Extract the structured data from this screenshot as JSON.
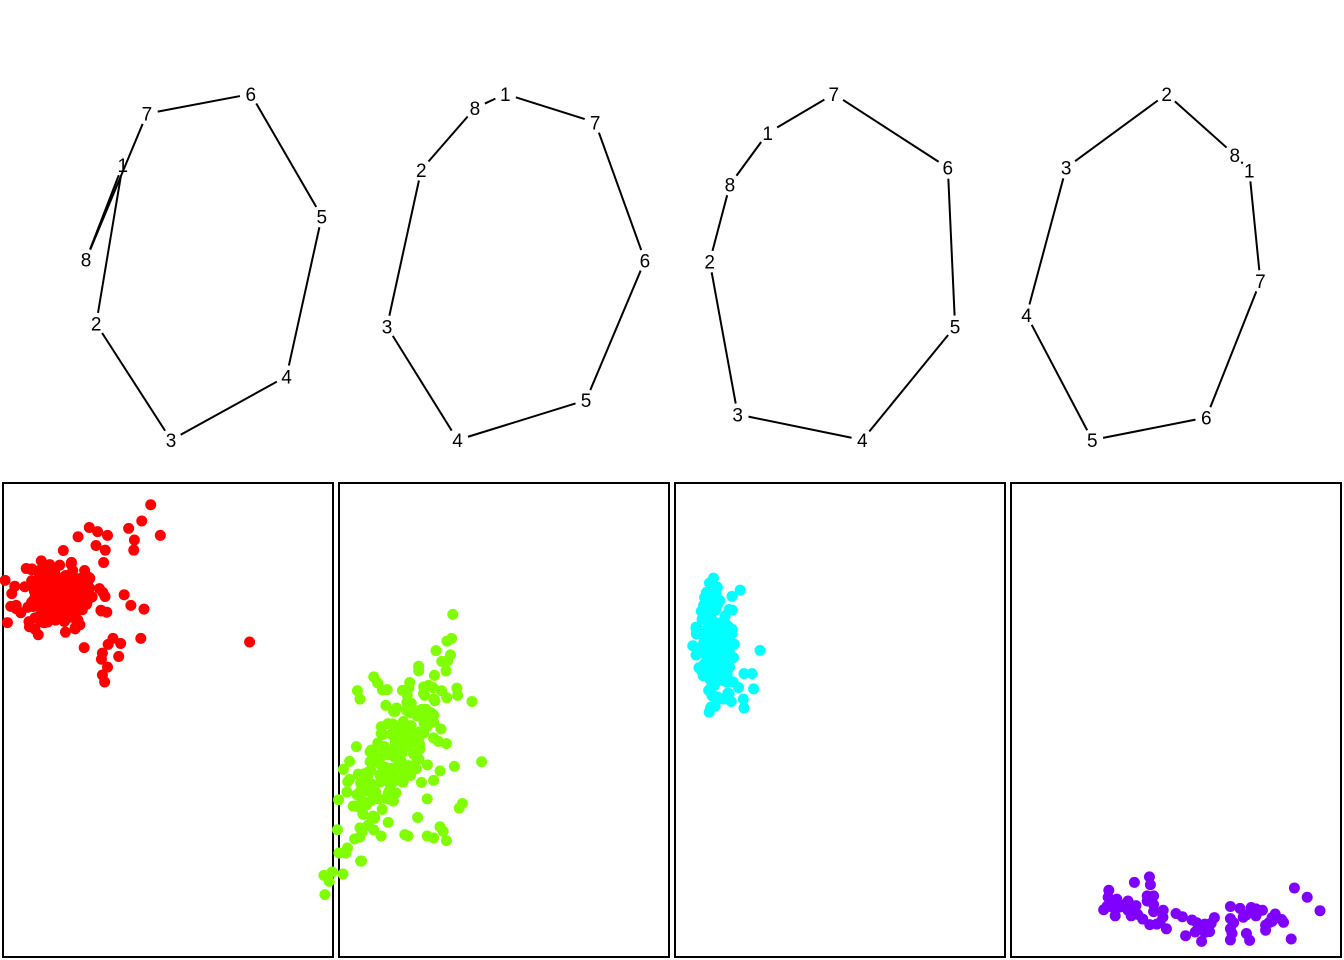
{
  "chart_data": [
    {
      "type": "network",
      "color": "#000000",
      "vertices": [
        {
          "label": "1",
          "x": 0.163,
          "y": 0.795
        },
        {
          "label": "2",
          "x": 0.108,
          "y": 0.336
        },
        {
          "label": "3",
          "x": 0.263,
          "y": 0.0
        },
        {
          "label": "4",
          "x": 0.502,
          "y": 0.184
        },
        {
          "label": "5",
          "x": 0.575,
          "y": 0.646
        },
        {
          "label": "6",
          "x": 0.428,
          "y": 1.0
        },
        {
          "label": "7",
          "x": 0.213,
          "y": 0.943
        },
        {
          "label": "8",
          "x": 0.087,
          "y": 0.521
        }
      ],
      "edges": [
        [
          8,
          1
        ],
        [
          1,
          2
        ],
        [
          2,
          3
        ],
        [
          3,
          4
        ],
        [
          4,
          5
        ],
        [
          5,
          6
        ],
        [
          6,
          7
        ],
        [
          7,
          8
        ]
      ]
    },
    {
      "type": "network",
      "color": "#000000",
      "vertices": [
        {
          "label": "1",
          "x": 0.955,
          "y": 1.0
        },
        {
          "label": "2",
          "x": 0.781,
          "y": 0.781
        },
        {
          "label": "3",
          "x": 0.71,
          "y": 0.328
        },
        {
          "label": "4",
          "x": 0.856,
          "y": 0.0
        },
        {
          "label": "5",
          "x": 1.122,
          "y": 0.115
        },
        {
          "label": "6",
          "x": 1.244,
          "y": 0.519
        },
        {
          "label": "7",
          "x": 1.141,
          "y": 0.918
        },
        {
          "label": "8",
          "x": 0.892,
          "y": 0.959
        }
      ],
      "edges": [
        [
          8,
          1
        ],
        [
          1,
          7
        ],
        [
          7,
          6
        ],
        [
          6,
          5
        ],
        [
          5,
          4
        ],
        [
          4,
          3
        ],
        [
          3,
          2
        ],
        [
          2,
          8
        ]
      ]
    },
    {
      "type": "network",
      "color": "#000000",
      "vertices": [
        {
          "label": "1",
          "x": 1.498,
          "y": 0.887
        },
        {
          "label": "2",
          "x": 1.378,
          "y": 0.516
        },
        {
          "label": "3",
          "x": 1.436,
          "y": 0.074
        },
        {
          "label": "4",
          "x": 1.694,
          "y": 0.0
        },
        {
          "label": "5",
          "x": 1.886,
          "y": 0.328
        },
        {
          "label": "6",
          "x": 1.871,
          "y": 0.787
        },
        {
          "label": "7",
          "x": 1.635,
          "y": 1.0
        },
        {
          "label": "8",
          "x": 1.42,
          "y": 0.738
        }
      ],
      "edges": [
        [
          8,
          1
        ],
        [
          1,
          7
        ],
        [
          7,
          6
        ],
        [
          6,
          5
        ],
        [
          5,
          4
        ],
        [
          4,
          3
        ],
        [
          3,
          2
        ],
        [
          2,
          8
        ]
      ]
    },
    {
      "type": "network",
      "color": "#000000",
      "vertices": [
        {
          "label": "1",
          "x": 2.495,
          "y": 0.779
        },
        {
          "label": "2",
          "x": 2.324,
          "y": 1.0
        },
        {
          "label": "3",
          "x": 2.116,
          "y": 0.787
        },
        {
          "label": "4",
          "x": 2.034,
          "y": 0.361
        },
        {
          "label": "5",
          "x": 2.17,
          "y": 0.0
        },
        {
          "label": "6",
          "x": 2.406,
          "y": 0.065
        },
        {
          "label": "7",
          "x": 2.518,
          "y": 0.459
        },
        {
          "label": "8",
          "x": 2.465,
          "y": 0.824
        }
      ],
      "edges": [
        [
          8,
          1
        ],
        [
          1,
          7
        ],
        [
          7,
          6
        ],
        [
          6,
          5
        ],
        [
          5,
          4
        ],
        [
          4,
          3
        ],
        [
          3,
          2
        ],
        [
          2,
          8
        ]
      ]
    },
    {
      "type": "scatter",
      "color": "#FF0000",
      "cluster": {
        "cx": 0.16,
        "cy": 0.77,
        "sx": 0.06,
        "sy": 0.035,
        "n": 220,
        "seed": 11
      },
      "points": [
        [
          0.446,
          0.964
        ],
        [
          0.418,
          0.929
        ],
        [
          0.476,
          0.898
        ],
        [
          0.377,
          0.913
        ],
        [
          0.395,
          0.888
        ],
        [
          0.304,
          0.866
        ],
        [
          0.393,
          0.866
        ],
        [
          0.311,
          0.898
        ],
        [
          0.275,
          0.876
        ],
        [
          0.28,
          0.906
        ],
        [
          0.254,
          0.915
        ],
        [
          0.219,
          0.895
        ],
        [
          0.363,
          0.77
        ],
        [
          0.384,
          0.747
        ],
        [
          0.425,
          0.739
        ],
        [
          0.415,
          0.676
        ],
        [
          0.328,
          0.676
        ],
        [
          0.313,
          0.663
        ],
        [
          0.352,
          0.665
        ],
        [
          0.295,
          0.644
        ],
        [
          0.311,
          0.614
        ],
        [
          0.346,
          0.637
        ],
        [
          0.295,
          0.597
        ],
        [
          0.302,
          0.582
        ],
        [
          0.292,
          0.631
        ],
        [
          0.238,
          0.656
        ],
        [
          0.755,
          0.668
        ],
        [
          0.067,
          0.701
        ],
        [
          0.21,
          0.699
        ],
        [
          0.104,
          0.843
        ]
      ]
    },
    {
      "type": "scatter",
      "color": "#7FFF00",
      "cluster": {
        "cx": 0.15,
        "cy": 0.42,
        "sx": 0.05,
        "sy": 0.1,
        "tilt": -1.6,
        "n": 220,
        "seed": 23
      },
      "points": [
        [
          0.042,
          0.563
        ],
        [
          0.05,
          0.545
        ],
        [
          0.093,
          0.593
        ],
        [
          0.105,
          0.58
        ],
        [
          0.12,
          0.565
        ],
        [
          0.355,
          0.553
        ],
        [
          0.4,
          0.54
        ],
        [
          0.295,
          0.454
        ],
        [
          0.32,
          0.449
        ],
        [
          0.345,
          0.4
        ],
        [
          0.3,
          0.39
        ],
        [
          0.28,
          0.37
        ],
        [
          0.37,
          0.32
        ],
        [
          0.36,
          0.31
        ],
        [
          0.26,
          0.33
        ],
        [
          0.23,
          0.29
        ],
        [
          0.26,
          0.25
        ],
        [
          0.28,
          0.246
        ],
        [
          0.31,
          0.26
        ],
        [
          0.32,
          0.24
        ],
        [
          0.2,
          0.25
        ],
        [
          0.19,
          0.253
        ],
        [
          0.3,
          0.27
        ],
        [
          0.43,
          0.41
        ]
      ]
    },
    {
      "type": "scatter",
      "color": "#00FFFF",
      "cluster": {
        "cx": 0.11,
        "cy": 0.66,
        "sx": 0.025,
        "sy": 0.06,
        "n": 160,
        "seed": 37
      },
      "points": [
        [
          0.092,
          0.795
        ],
        [
          0.117,
          0.786
        ],
        [
          0.113,
          0.77
        ],
        [
          0.188,
          0.78
        ],
        [
          0.25,
          0.65
        ],
        [
          0.225,
          0.6
        ],
        [
          0.23,
          0.567
        ],
        [
          0.183,
          0.57
        ],
        [
          0.2,
          0.6
        ],
        [
          0.198,
          0.545
        ],
        [
          0.2,
          0.526
        ],
        [
          0.095,
          0.525
        ],
        [
          0.11,
          0.53
        ],
        [
          0.16,
          0.54
        ],
        [
          0.05,
          0.7
        ],
        [
          0.05,
          0.64
        ],
        [
          0.04,
          0.66
        ]
      ]
    },
    {
      "type": "scatter",
      "color": "#7F00FF",
      "points": [
        [
          0.417,
          0.162
        ],
        [
          0.29,
          0.133
        ],
        [
          0.288,
          0.118
        ],
        [
          0.315,
          0.114
        ],
        [
          0.35,
          0.11
        ],
        [
          0.43,
          0.121
        ],
        [
          0.307,
          0.104
        ],
        [
          0.325,
          0.097
        ],
        [
          0.343,
          0.103
        ],
        [
          0.285,
          0.099
        ],
        [
          0.274,
          0.091
        ],
        [
          0.3,
          0.097
        ],
        [
          0.31,
          0.078
        ],
        [
          0.36,
          0.078
        ],
        [
          0.35,
          0.09
        ],
        [
          0.41,
          0.11
        ],
        [
          0.43,
          0.102
        ],
        [
          0.43,
          0.087
        ],
        [
          0.46,
          0.09
        ],
        [
          0.459,
          0.075
        ],
        [
          0.418,
          0.059
        ],
        [
          0.38,
          0.081
        ],
        [
          0.45,
          0.063
        ],
        [
          0.396,
          0.071
        ],
        [
          0.5,
          0.083
        ],
        [
          0.52,
          0.076
        ],
        [
          0.55,
          0.069
        ],
        [
          0.565,
          0.063
        ],
        [
          0.59,
          0.06
        ],
        [
          0.61,
          0.062
        ],
        [
          0.585,
          0.052
        ],
        [
          0.59,
          0.042
        ],
        [
          0.605,
          0.044
        ],
        [
          0.67,
          0.05
        ],
        [
          0.68,
          0.063
        ],
        [
          0.67,
          0.072
        ],
        [
          0.71,
          0.075
        ],
        [
          0.7,
          0.094
        ],
        [
          0.72,
          0.08
        ],
        [
          0.67,
          0.098
        ],
        [
          0.75,
          0.093
        ],
        [
          0.735,
          0.096
        ],
        [
          0.77,
          0.09
        ],
        [
          0.75,
          0.078
        ],
        [
          0.72,
          0.04
        ],
        [
          0.67,
          0.026
        ],
        [
          0.675,
          0.04
        ],
        [
          0.56,
          0.043
        ],
        [
          0.53,
          0.035
        ],
        [
          0.58,
          0.023
        ],
        [
          0.73,
          0.025
        ],
        [
          0.78,
          0.047
        ],
        [
          0.8,
          0.074
        ],
        [
          0.81,
          0.082
        ],
        [
          0.83,
          0.07
        ],
        [
          0.836,
          0.064
        ],
        [
          0.8,
          0.066
        ],
        [
          0.78,
          0.058
        ],
        [
          0.79,
          0.063
        ],
        [
          0.91,
          0.118
        ],
        [
          0.87,
          0.138
        ],
        [
          0.95,
          0.089
        ],
        [
          0.42,
          0.145
        ],
        [
          0.37,
          0.15
        ],
        [
          0.375,
          0.1
        ],
        [
          0.41,
          0.121
        ],
        [
          0.44,
          0.06
        ],
        [
          0.47,
          0.05
        ],
        [
          0.86,
          0.028
        ],
        [
          0.62,
          0.074
        ]
      ]
    }
  ]
}
